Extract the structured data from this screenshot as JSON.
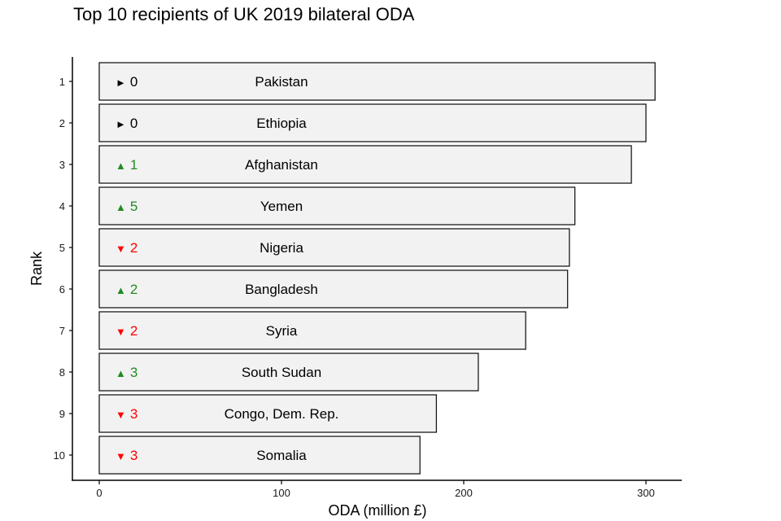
{
  "chart_data": {
    "type": "bar",
    "orientation": "horizontal",
    "title": "Top 10 recipients of UK 2019 bilateral ODA",
    "xlabel": "ODA (million £)",
    "ylabel": "Rank",
    "xlim": [
      -15,
      320
    ],
    "xticks": [
      0,
      100,
      200,
      300
    ],
    "yticks": [
      "1",
      "2",
      "3",
      "4",
      "5",
      "6",
      "7",
      "8",
      "9",
      "10"
    ],
    "grid": false,
    "legend": "none",
    "bar_fill": "#f2f2f2",
    "bar_stroke": "#1a1a1a",
    "label_position_value": 100,
    "colors": {
      "up": "#228b22",
      "down": "#ff0000",
      "same": "#000000"
    },
    "bars": [
      {
        "rank": "1",
        "country": "Pakistan",
        "value": 305,
        "change_dir": "same",
        "change_symbol": "►",
        "change": "0"
      },
      {
        "rank": "2",
        "country": "Ethiopia",
        "value": 300,
        "change_dir": "same",
        "change_symbol": "►",
        "change": "0"
      },
      {
        "rank": "3",
        "country": "Afghanistan",
        "value": 292,
        "change_dir": "up",
        "change_symbol": "▲",
        "change": "1"
      },
      {
        "rank": "4",
        "country": "Yemen",
        "value": 261,
        "change_dir": "up",
        "change_symbol": "▲",
        "change": "5"
      },
      {
        "rank": "5",
        "country": "Nigeria",
        "value": 258,
        "change_dir": "down",
        "change_symbol": "▼",
        "change": "2"
      },
      {
        "rank": "6",
        "country": "Bangladesh",
        "value": 257,
        "change_dir": "up",
        "change_symbol": "▲",
        "change": "2"
      },
      {
        "rank": "7",
        "country": "Syria",
        "value": 234,
        "change_dir": "down",
        "change_symbol": "▼",
        "change": "2"
      },
      {
        "rank": "8",
        "country": "South Sudan",
        "value": 208,
        "change_dir": "up",
        "change_symbol": "▲",
        "change": "3"
      },
      {
        "rank": "9",
        "country": "Congo, Dem. Rep.",
        "value": 185,
        "change_dir": "down",
        "change_symbol": "▼",
        "change": "3"
      },
      {
        "rank": "10",
        "country": "Somalia",
        "value": 176,
        "change_dir": "down",
        "change_symbol": "▼",
        "change": "3"
      }
    ]
  }
}
